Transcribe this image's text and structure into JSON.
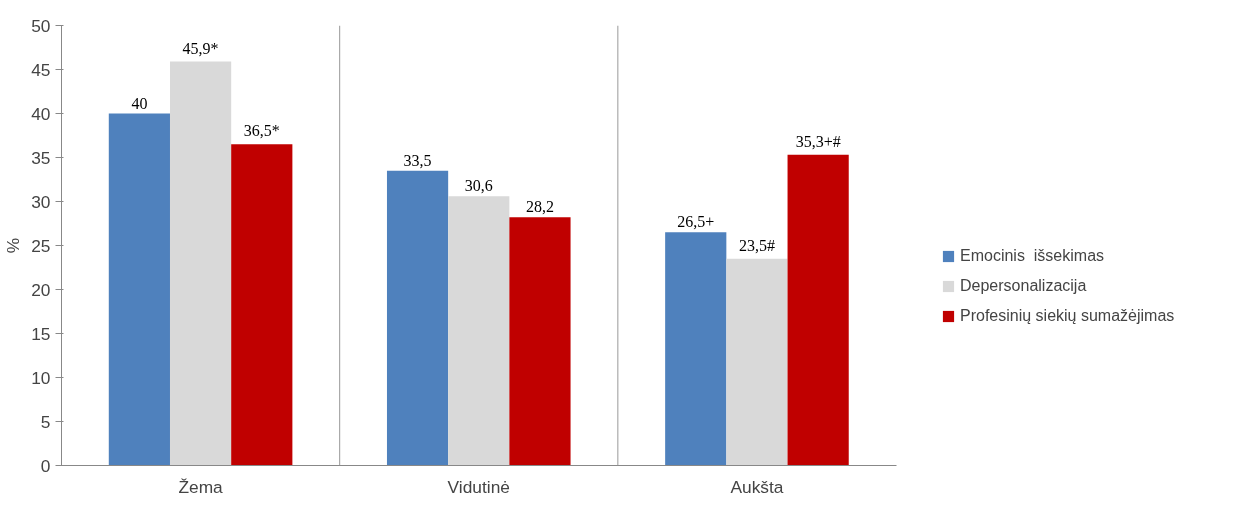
{
  "chart_data": {
    "type": "bar",
    "ylabel": "%",
    "categories": [
      "Žema",
      "Vidutinė",
      "Aukšta"
    ],
    "series": [
      {
        "name": "Emocinis  išsekimas",
        "color": "#4f81bd",
        "values": [
          40,
          33.5,
          26.5
        ],
        "value_labels": [
          "40",
          "33,5",
          "26,5+"
        ]
      },
      {
        "name": "Depersonalizacija",
        "color": "#d9d9d9",
        "values": [
          45.9,
          30.6,
          23.5
        ],
        "value_labels": [
          "45,9*",
          "30,6",
          "23,5#"
        ]
      },
      {
        "name": "Profesinių siekių sumažėjimas",
        "color": "#c00000",
        "values": [
          36.5,
          28.2,
          35.3
        ],
        "value_labels": [
          "36,5*",
          "28,2",
          "35,3+#"
        ]
      }
    ],
    "ylim": [
      0,
      50
    ],
    "yticks": [
      0,
      5,
      10,
      15,
      20,
      25,
      30,
      35,
      40,
      45,
      50
    ],
    "grid": "x",
    "legend": "right"
  }
}
